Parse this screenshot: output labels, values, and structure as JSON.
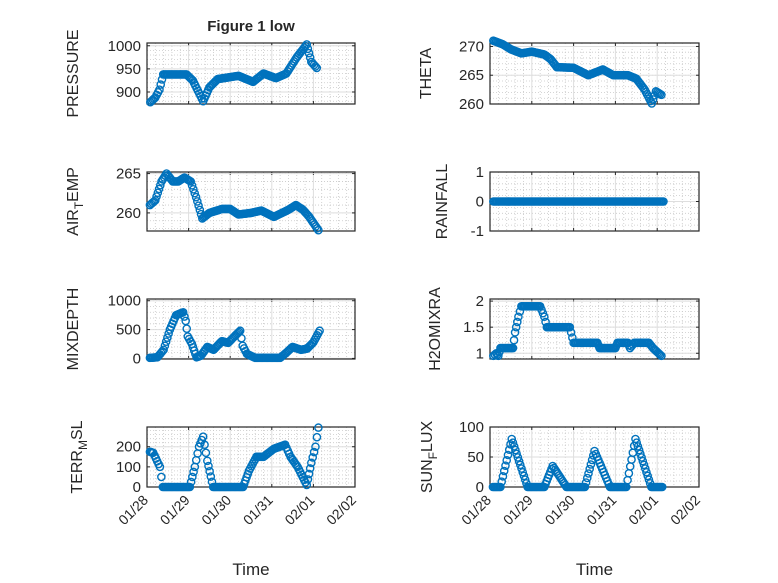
{
  "figure": {
    "title": "Figure 1 low"
  },
  "colors": {
    "marker": "#0072BD",
    "axis": "#262626",
    "grid": "#dedede",
    "minor_grid": "#c8c8c8"
  },
  "chart_data": [
    {
      "type": "scatter",
      "title": "Figure 1 low",
      "ylabel": "PRESSURE",
      "xlabel": "",
      "x_unit": "days since 01/28",
      "xlim": [
        0,
        5
      ],
      "xticks": [
        "01/28",
        "01/29",
        "01/30",
        "01/31",
        "02/01",
        "02/02"
      ],
      "ylim": [
        874,
        1006
      ],
      "yticks": [
        900,
        950,
        1000
      ],
      "points": [
        [
          0.08,
          878
        ],
        [
          0.2,
          888
        ],
        [
          0.3,
          905
        ],
        [
          0.39,
          938
        ],
        [
          0.95,
          938
        ],
        [
          1.1,
          925
        ],
        [
          1.35,
          880
        ],
        [
          1.5,
          910
        ],
        [
          1.7,
          928
        ],
        [
          2.2,
          935
        ],
        [
          2.55,
          922
        ],
        [
          2.8,
          940
        ],
        [
          3.1,
          930
        ],
        [
          3.35,
          940
        ],
        [
          3.6,
          975
        ],
        [
          3.84,
          1003
        ],
        [
          3.95,
          965
        ],
        [
          4.08,
          952
        ]
      ]
    },
    {
      "type": "scatter",
      "title": "",
      "ylabel": "THETA",
      "xlabel": "",
      "x_unit": "days since 01/28",
      "xlim": [
        0,
        5
      ],
      "xticks": [
        "01/28",
        "01/29",
        "01/30",
        "01/31",
        "02/01",
        "02/02"
      ],
      "ylim": [
        260,
        270.6
      ],
      "yticks": [
        260,
        265,
        270
      ],
      "points": [
        [
          0.08,
          271
        ],
        [
          0.3,
          270.4
        ],
        [
          0.5,
          269.5
        ],
        [
          0.75,
          268.8
        ],
        [
          1.0,
          269.1
        ],
        [
          1.3,
          268.6
        ],
        [
          1.45,
          267.8
        ],
        [
          1.6,
          266.4
        ],
        [
          2.0,
          266.3
        ],
        [
          2.35,
          265
        ],
        [
          2.7,
          266
        ],
        [
          2.95,
          265
        ],
        [
          3.3,
          265
        ],
        [
          3.5,
          264.4
        ],
        [
          3.7,
          262.5
        ],
        [
          3.87,
          260.1
        ],
        [
          3.97,
          262.2
        ],
        [
          4.1,
          261.6
        ]
      ]
    },
    {
      "type": "scatter",
      "title": "",
      "ylabel": "AIR_TEMP",
      "xlabel": "",
      "x_unit": "days since 01/28",
      "xlim": [
        0,
        5
      ],
      "xticks": [
        "01/28",
        "01/29",
        "01/30",
        "01/31",
        "02/01",
        "02/02"
      ],
      "ylim": [
        257.7,
        265.2
      ],
      "yticks": [
        260,
        265
      ],
      "points": [
        [
          0.07,
          261
        ],
        [
          0.2,
          261.6
        ],
        [
          0.35,
          264
        ],
        [
          0.47,
          265
        ],
        [
          0.62,
          264
        ],
        [
          0.75,
          264
        ],
        [
          0.9,
          264.5
        ],
        [
          1.05,
          264
        ],
        [
          1.18,
          262
        ],
        [
          1.33,
          259.3
        ],
        [
          1.5,
          260
        ],
        [
          1.8,
          260.5
        ],
        [
          2.0,
          260.5
        ],
        [
          2.2,
          259.8
        ],
        [
          2.5,
          260
        ],
        [
          2.75,
          260.3
        ],
        [
          3.05,
          259.5
        ],
        [
          3.4,
          260.4
        ],
        [
          3.58,
          261
        ],
        [
          3.75,
          260.4
        ],
        [
          3.9,
          259.5
        ],
        [
          4.12,
          257.8
        ]
      ]
    },
    {
      "type": "scatter",
      "title": "",
      "ylabel": "RAINFALL",
      "xlabel": "",
      "x_unit": "days since 01/28",
      "xlim": [
        0,
        5
      ],
      "xticks": [
        "01/28",
        "01/29",
        "01/30",
        "01/31",
        "02/01",
        "02/02"
      ],
      "ylim": [
        -1,
        1
      ],
      "yticks": [
        -1,
        0,
        1
      ],
      "points": [
        [
          0.08,
          0
        ],
        [
          4.15,
          0
        ]
      ]
    },
    {
      "type": "scatter",
      "title": "",
      "ylabel": "MIXDEPTH",
      "xlabel": "",
      "x_unit": "days since 01/28",
      "xlim": [
        0,
        5
      ],
      "xticks": [
        "01/28",
        "01/29",
        "01/30",
        "01/31",
        "02/01",
        "02/02"
      ],
      "ylim": [
        -10,
        1030
      ],
      "yticks": [
        0,
        500,
        1000
      ],
      "points": [
        [
          0.07,
          10
        ],
        [
          0.25,
          20
        ],
        [
          0.4,
          150
        ],
        [
          0.55,
          500
        ],
        [
          0.7,
          750
        ],
        [
          0.87,
          800
        ],
        [
          0.93,
          650
        ],
        [
          0.98,
          380
        ],
        [
          1.08,
          250
        ],
        [
          1.19,
          20
        ],
        [
          1.3,
          50
        ],
        [
          1.45,
          200
        ],
        [
          1.6,
          150
        ],
        [
          1.8,
          300
        ],
        [
          1.95,
          270
        ],
        [
          2.1,
          380
        ],
        [
          2.24,
          480
        ],
        [
          2.3,
          220
        ],
        [
          2.4,
          80
        ],
        [
          2.6,
          10
        ],
        [
          3.2,
          10
        ],
        [
          3.35,
          100
        ],
        [
          3.5,
          200
        ],
        [
          3.7,
          150
        ],
        [
          3.85,
          170
        ],
        [
          4.0,
          280
        ],
        [
          4.15,
          480
        ]
      ]
    },
    {
      "type": "scatter",
      "title": "",
      "ylabel": "H2OMIXRA",
      "xlabel": "",
      "x_unit": "days since 01/28",
      "xlim": [
        0,
        5
      ],
      "xticks": [
        "01/28",
        "01/29",
        "01/30",
        "01/31",
        "02/01",
        "02/02"
      ],
      "ylim": [
        0.89,
        2.04
      ],
      "yticks": [
        1,
        1.5,
        2
      ],
      "points": [
        [
          0.08,
          0.95
        ],
        [
          0.15,
          1.0
        ],
        [
          0.2,
          0.95
        ],
        [
          0.25,
          1.1
        ],
        [
          0.55,
          1.1
        ],
        [
          0.6,
          1.4
        ],
        [
          0.68,
          1.7
        ],
        [
          0.75,
          1.9
        ],
        [
          1.2,
          1.9
        ],
        [
          1.3,
          1.7
        ],
        [
          1.36,
          1.5
        ],
        [
          1.91,
          1.5
        ],
        [
          2.0,
          1.2
        ],
        [
          2.57,
          1.2
        ],
        [
          2.62,
          1.1
        ],
        [
          3.0,
          1.1
        ],
        [
          3.05,
          1.2
        ],
        [
          3.3,
          1.2
        ],
        [
          3.35,
          1.1
        ],
        [
          3.45,
          1.2
        ],
        [
          3.8,
          1.2
        ],
        [
          3.9,
          1.1
        ],
        [
          4.1,
          0.95
        ]
      ]
    },
    {
      "type": "scatter",
      "title": "",
      "ylabel": "TERR_MSL",
      "xlabel": "Time",
      "x_unit": "days since 01/28",
      "xlim": [
        0,
        5
      ],
      "xticks": [
        "01/28",
        "01/29",
        "01/30",
        "01/31",
        "02/01",
        "02/02"
      ],
      "ylim": [
        0,
        298
      ],
      "yticks": [
        0,
        100,
        200
      ],
      "points": [
        [
          0.07,
          175
        ],
        [
          0.15,
          170
        ],
        [
          0.31,
          100
        ],
        [
          0.38,
          0
        ],
        [
          1.03,
          0
        ],
        [
          1.15,
          100
        ],
        [
          1.25,
          200
        ],
        [
          1.35,
          250
        ],
        [
          1.45,
          130
        ],
        [
          1.59,
          0
        ],
        [
          2.31,
          0
        ],
        [
          2.45,
          80
        ],
        [
          2.63,
          150
        ],
        [
          2.8,
          150
        ],
        [
          3.05,
          190
        ],
        [
          3.32,
          210
        ],
        [
          3.45,
          150
        ],
        [
          3.62,
          100
        ],
        [
          3.84,
          10
        ],
        [
          3.95,
          120
        ],
        [
          4.05,
          200
        ],
        [
          4.12,
          295
        ]
      ]
    },
    {
      "type": "scatter",
      "title": "",
      "ylabel": "SUN_FLUX",
      "xlabel": "Time",
      "x_unit": "days since 01/28",
      "xlim": [
        0,
        5
      ],
      "xticks": [
        "01/28",
        "01/29",
        "01/30",
        "01/31",
        "02/01",
        "02/02"
      ],
      "ylim": [
        0,
        100
      ],
      "yticks": [
        0,
        50,
        100
      ],
      "points": [
        [
          0.07,
          0
        ],
        [
          0.25,
          0
        ],
        [
          0.52,
          80
        ],
        [
          0.9,
          0
        ],
        [
          1.3,
          0
        ],
        [
          1.5,
          35
        ],
        [
          1.83,
          0
        ],
        [
          2.27,
          0
        ],
        [
          2.5,
          60
        ],
        [
          2.87,
          0
        ],
        [
          3.26,
          0
        ],
        [
          3.48,
          80
        ],
        [
          3.86,
          0
        ],
        [
          4.12,
          0
        ]
      ]
    }
  ]
}
